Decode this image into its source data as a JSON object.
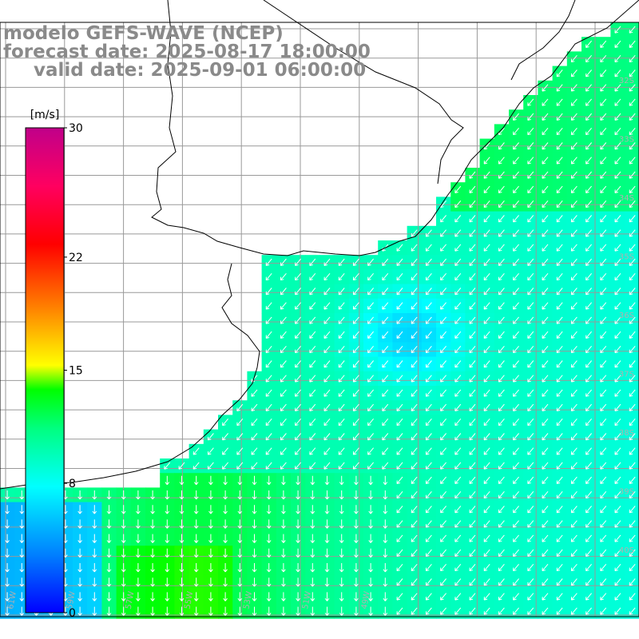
{
  "title": {
    "model": "modelo GEFS-WAVE (NCEP)",
    "forecast": "forecast date: 2025-08-17 18:00:00",
    "valid": "valid date: 2025-09-01 06:00:00"
  },
  "colorbar": {
    "unit": "[m/s]",
    "ticks": [
      {
        "value": 30,
        "label": "30"
      },
      {
        "value": 22,
        "label": "22"
      },
      {
        "value": 15,
        "label": "15"
      },
      {
        "value": 8,
        "label": "8"
      },
      {
        "value": 0,
        "label": "0"
      }
    ],
    "min": 0,
    "max": 30,
    "colors": [
      "#0000ff",
      "#0080ff",
      "#00ffff",
      "#00ff80",
      "#00ff00",
      "#ffff00",
      "#ff8000",
      "#ff0000",
      "#ff0060",
      "#c0008a"
    ]
  },
  "map": {
    "lon_labels": [
      "61W",
      "59W",
      "57W",
      "55W",
      "53W",
      "51W",
      "49W"
    ],
    "lat_labels": [
      "32S",
      "33S",
      "34S",
      "35S",
      "36S",
      "37S",
      "38S",
      "39S",
      "40S"
    ],
    "land_color": "#ffffff",
    "grid_color": "#999999",
    "arrow_color": "#ffffff"
  }
}
